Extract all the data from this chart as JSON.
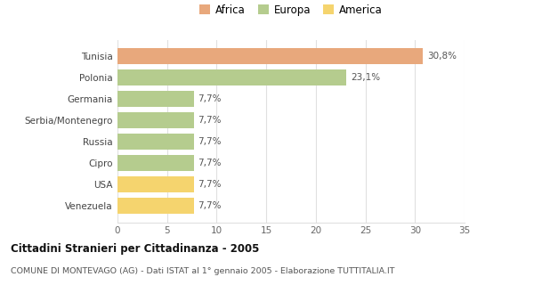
{
  "categories": [
    "Venezuela",
    "USA",
    "Cipro",
    "Russia",
    "Serbia/Montenegro",
    "Germania",
    "Polonia",
    "Tunisia"
  ],
  "values": [
    7.7,
    7.7,
    7.7,
    7.7,
    7.7,
    7.7,
    23.1,
    30.8
  ],
  "colors": [
    "#f5d46e",
    "#f5d46e",
    "#b5cc8e",
    "#b5cc8e",
    "#b5cc8e",
    "#b5cc8e",
    "#b5cc8e",
    "#e8a87c"
  ],
  "labels": [
    "7,7%",
    "7,7%",
    "7,7%",
    "7,7%",
    "7,7%",
    "7,7%",
    "23,1%",
    "30,8%"
  ],
  "legend_labels": [
    "Africa",
    "Europa",
    "America"
  ],
  "legend_colors": [
    "#e8a87c",
    "#b5cc8e",
    "#f5d46e"
  ],
  "title_bold": "Cittadini Stranieri per Cittadinanza - 2005",
  "subtitle": "COMUNE DI MONTEVAGO (AG) - Dati ISTAT al 1° gennaio 2005 - Elaborazione TUTTITALIA.IT",
  "xlim": [
    0,
    35
  ],
  "xticks": [
    0,
    5,
    10,
    15,
    20,
    25,
    30,
    35
  ],
  "background_color": "#ffffff",
  "grid_color": "#e0e0e0",
  "bar_height": 0.75,
  "figsize": [
    6.0,
    3.2
  ],
  "dpi": 100
}
